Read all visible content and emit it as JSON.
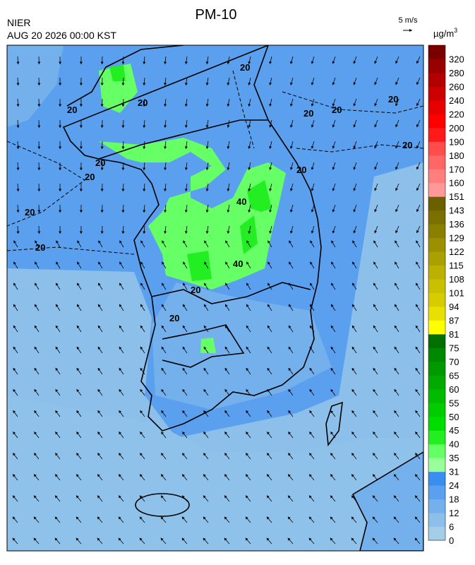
{
  "header": {
    "title": "PM-10",
    "agency": "NIER",
    "datetime": "AUG 20 2026 00:00 KST",
    "wind_scale": "5 m/s"
  },
  "colorbar": {
    "unit": {
      "base": "µg/m",
      "sup": "3"
    },
    "levels": [
      0,
      6,
      12,
      18,
      24,
      31,
      35,
      40,
      45,
      50,
      55,
      60,
      65,
      70,
      75,
      81,
      87,
      94,
      101,
      108,
      115,
      122,
      129,
      136,
      143,
      151,
      160,
      170,
      180,
      190,
      200,
      220,
      240,
      260,
      280,
      320
    ],
    "colors": [
      "#a4cde8",
      "#8cbfea",
      "#74b0ec",
      "#5aa0ee",
      "#3a8ef0",
      "#99ff99",
      "#66ff66",
      "#22ee22",
      "#00dd00",
      "#00cc00",
      "#00bb00",
      "#00aa00",
      "#009900",
      "#008800",
      "#007000",
      "#ffff00",
      "#e8e000",
      "#d6cc00",
      "#c8c000",
      "#bcb000",
      "#aaa000",
      "#9a9000",
      "#8a8000",
      "#7a7000",
      "#6a6000",
      "#ff9999",
      "#ff7f7f",
      "#ff6666",
      "#ff4c4c",
      "#ff1a1a",
      "#ff0000",
      "#e60000",
      "#cc0000",
      "#b30000",
      "#990000",
      "#7a0000"
    ]
  },
  "contour_labels": [
    "20",
    "20",
    "20",
    "20",
    "20",
    "20",
    "20",
    "20",
    "20",
    "20",
    "20",
    "20",
    "20",
    "20",
    "40",
    "40"
  ]
}
